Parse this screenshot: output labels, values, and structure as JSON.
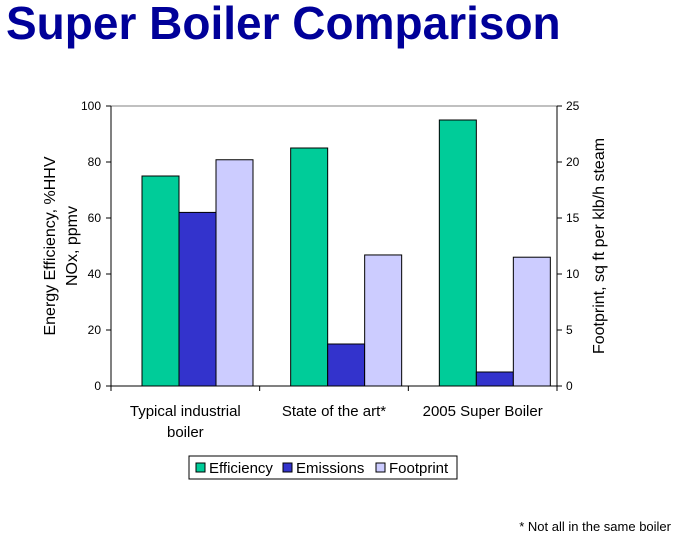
{
  "title": "Super Boiler Comparison",
  "footnote": "* Not all in the same boiler",
  "chart_data": {
    "type": "bar",
    "categories": [
      "Typical industrial boiler",
      "State of the art*",
      "2005 Super Boiler"
    ],
    "category_lines": [
      [
        "Typical industrial",
        "boiler"
      ],
      [
        "State of the art*"
      ],
      [
        "2005 Super Boiler"
      ]
    ],
    "ylabel_lines": [
      "Energy Efficiency, %HHV",
      "NOx, ppmv"
    ],
    "y2label": "Footprint, sq ft per klb/h steam",
    "ylim": [
      0,
      100
    ],
    "y2lim": [
      0,
      25
    ],
    "yticks": [
      "0",
      "20",
      "40",
      "60",
      "80",
      "100"
    ],
    "y2ticks": [
      "0",
      "5",
      "10",
      "15",
      "20",
      "25"
    ],
    "grid": false,
    "legend_position": "bottom",
    "series": [
      {
        "name": "Efficiency",
        "axis": "left",
        "color": "#00cc99",
        "values": [
          75,
          85,
          95
        ]
      },
      {
        "name": "Emissions",
        "axis": "left",
        "color": "#3333cc",
        "values": [
          62,
          15,
          5
        ]
      },
      {
        "name": "Footprint",
        "axis": "right",
        "color": "#ccccff",
        "values": [
          20.2,
          11.7,
          11.5
        ]
      }
    ]
  }
}
